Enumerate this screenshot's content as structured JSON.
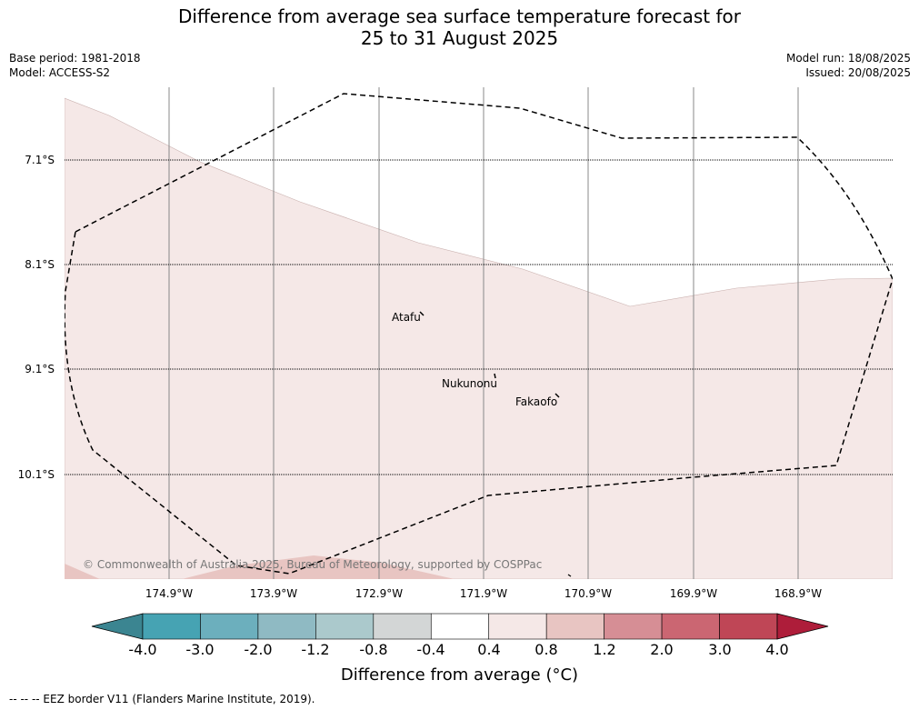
{
  "header": {
    "title_line1": "Difference from average sea surface temperature forecast for",
    "title_line2": "25 to 31 August 2025",
    "base_period": "Base period: 1981-2018",
    "model": "Model: ACCESS-S2",
    "model_run": "Model run: 18/08/2025",
    "issued": "Issued: 20/08/2025"
  },
  "map": {
    "lat_labels": [
      "7.1°S",
      "8.1°S",
      "9.1°S",
      "10.1°S"
    ],
    "lon_labels": [
      "174.9°W",
      "173.9°W",
      "172.9°W",
      "171.9°W",
      "170.9°W",
      "169.9°W",
      "168.9°W"
    ],
    "places": {
      "atafu": "Atafu",
      "nukunonu": "Nukunonu",
      "fakaofo": "Fakaofo"
    },
    "copyright": "© Commonwealth of Australia 2025, Bureau of Meteorology, supported by COSPPac",
    "fill_colors": {
      "anomaly_0_4_to_0_8": "#f5e8e7",
      "anomaly_0_8_to_1_2": "#e8c5c2"
    }
  },
  "colorbar": {
    "ticks": [
      "-4.0",
      "-3.0",
      "-2.0",
      "-1.2",
      "-0.8",
      "-0.4",
      "0.4",
      "0.8",
      "1.2",
      "2.0",
      "3.0",
      "4.0"
    ],
    "colors": [
      "#3b8591",
      "#46a3b3",
      "#6cafbd",
      "#8fbac3",
      "#abc9cc",
      "#d3d6d6",
      "#ffffff",
      "#f5e8e7",
      "#e8c5c2",
      "#d68e95",
      "#cb6672",
      "#bf4656",
      "#ae1d3a"
    ],
    "title": "Difference from average (°C)"
  },
  "footnote": "--  --  -- EEZ border V11 (Flanders Marine Institute, 2019)."
}
